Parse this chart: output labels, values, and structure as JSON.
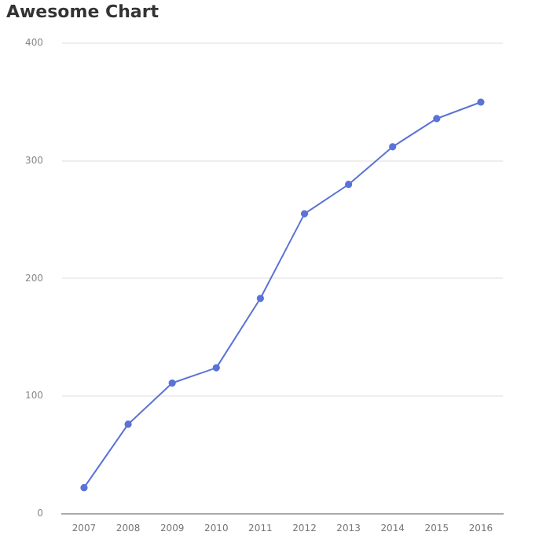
{
  "chart_data": {
    "type": "line",
    "title": "Awesome Chart",
    "categories": [
      "2007",
      "2008",
      "2009",
      "2010",
      "2011",
      "2012",
      "2013",
      "2014",
      "2015",
      "2016"
    ],
    "series": [
      {
        "color": "#5b73d6",
        "values": [
          22,
          76,
          111,
          124,
          183,
          255,
          280,
          312,
          336,
          350
        ]
      }
    ],
    "ylim": [
      0,
      400
    ],
    "yticks": [
      0,
      100,
      200,
      300,
      400
    ],
    "grid": "y",
    "marker": "circle",
    "legend": false
  }
}
